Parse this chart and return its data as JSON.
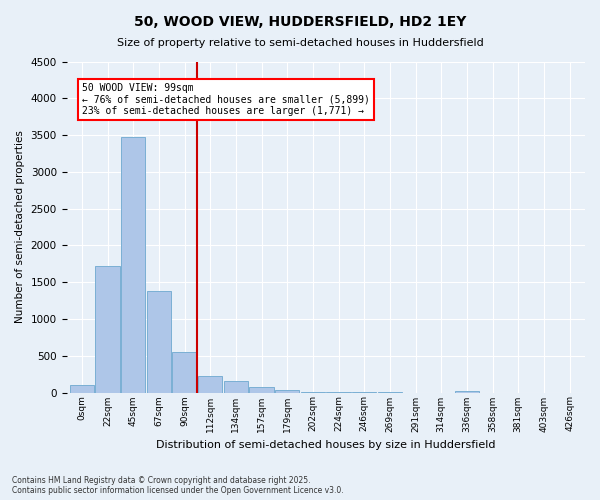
{
  "title": "50, WOOD VIEW, HUDDERSFIELD, HD2 1EY",
  "subtitle": "Size of property relative to semi-detached houses in Huddersfield",
  "xlabel": "Distribution of semi-detached houses by size in Huddersfield",
  "ylabel": "Number of semi-detached properties",
  "bar_color": "#aec6e8",
  "bar_edge_color": "#7aafd4",
  "background_color": "#e8f0f8",
  "grid_color": "#ffffff",
  "property_line_color": "#cc0000",
  "property_bin_index": 4,
  "annotation_text": "50 WOOD VIEW: 99sqm\n← 76% of semi-detached houses are smaller (5,899)\n23% of semi-detached houses are larger (1,771) →",
  "footer_text": "Contains HM Land Registry data © Crown copyright and database right 2025.\nContains public sector information licensed under the Open Government Licence v3.0.",
  "bin_labels": [
    "0sqm",
    "22sqm",
    "45sqm",
    "67sqm",
    "90sqm",
    "112sqm",
    "134sqm",
    "157sqm",
    "179sqm",
    "202sqm",
    "224sqm",
    "246sqm",
    "269sqm",
    "291sqm",
    "314sqm",
    "336sqm",
    "358sqm",
    "381sqm",
    "403sqm",
    "426sqm"
  ],
  "bar_values": [
    100,
    1720,
    3480,
    1380,
    550,
    230,
    150,
    80,
    40,
    10,
    5,
    3,
    2,
    0,
    0,
    25,
    0,
    0,
    0,
    0
  ],
  "ylim": [
    0,
    4500
  ],
  "yticks": [
    0,
    500,
    1000,
    1500,
    2000,
    2500,
    3000,
    3500,
    4000,
    4500
  ]
}
